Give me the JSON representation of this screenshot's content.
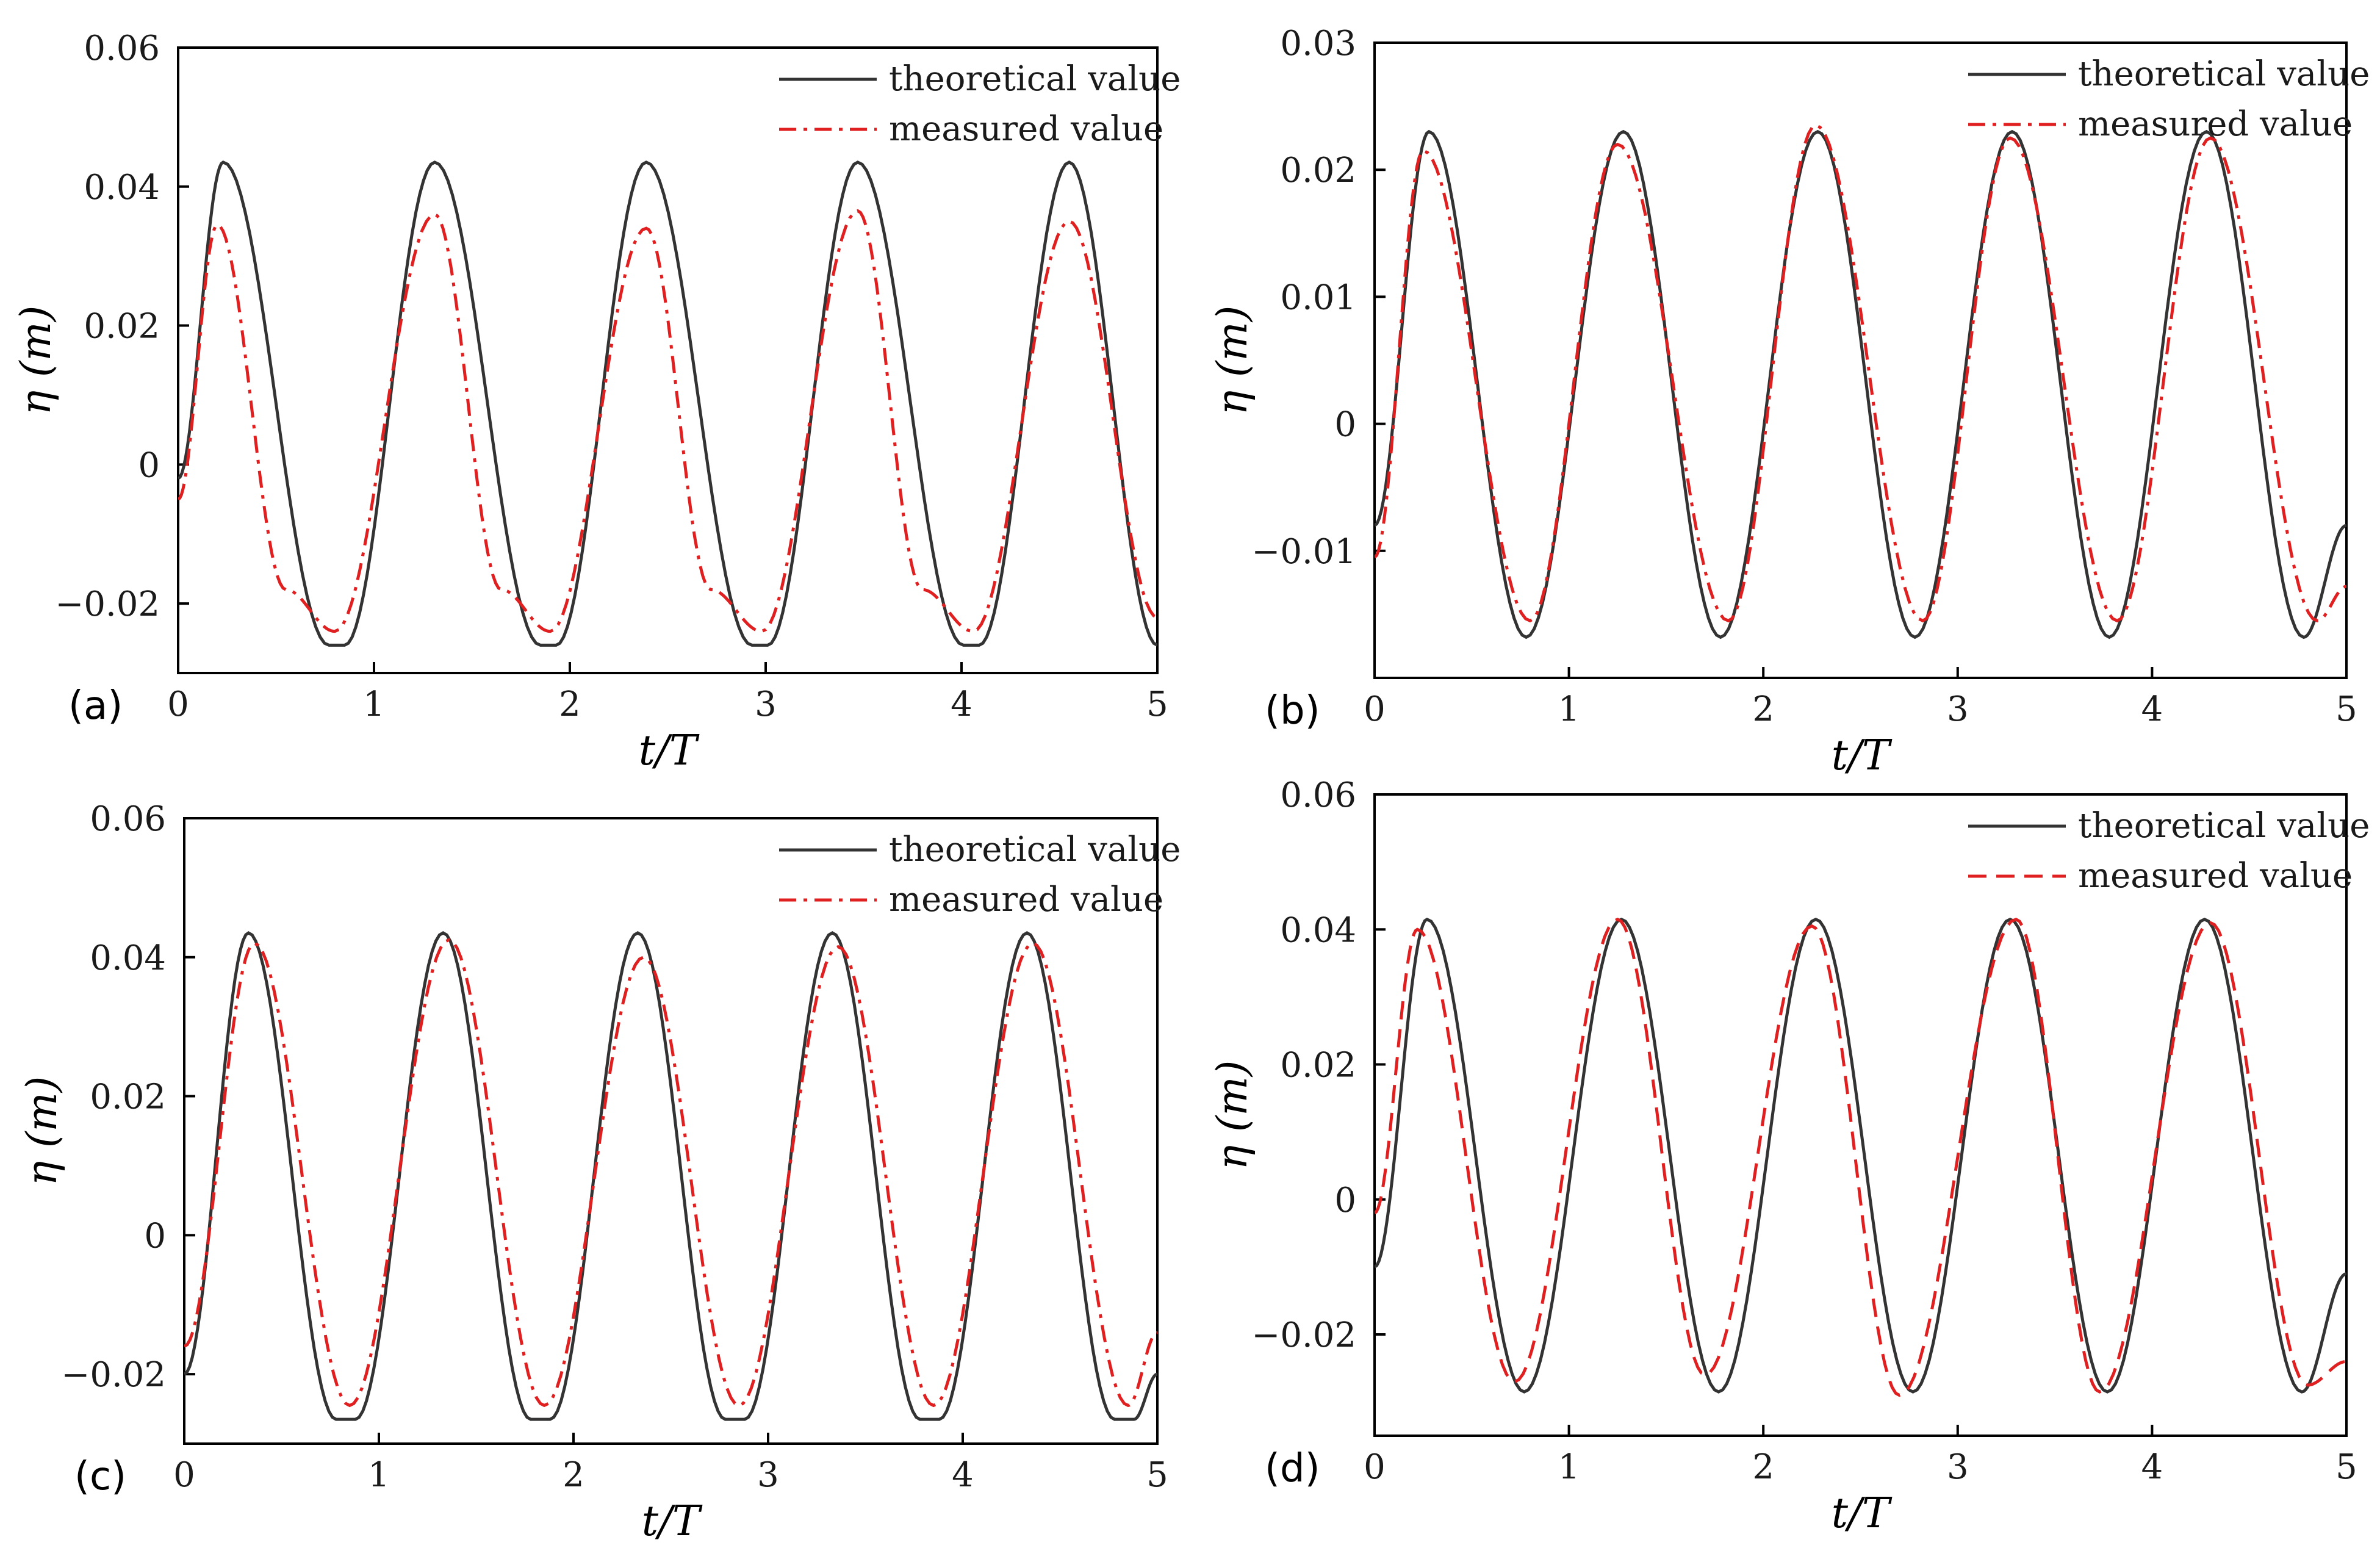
{
  "chart_data": [
    {
      "panel": "(a)",
      "type": "line",
      "xlabel": "t/T",
      "ylabel": "η (m)",
      "xlim": [
        0,
        5
      ],
      "ylim": [
        -0.03,
        0.06
      ],
      "x_ticks": [
        0,
        1,
        2,
        3,
        4,
        5
      ],
      "x_tick_labels": [
        "0",
        "1",
        "2",
        "3",
        "4",
        "5"
      ],
      "y_ticks": [
        -0.02,
        0,
        0.02,
        0.04,
        0.06
      ],
      "y_tick_labels": [
        "−0.02",
        "0",
        "0.02",
        "0.04",
        "0.06"
      ],
      "legend": "top-right",
      "grid": false,
      "series": [
        {
          "name": "theoretical value",
          "color": "#333333",
          "style": "solid",
          "x": [
            0,
            0.23,
            0.77,
            0.85,
            1.31,
            1.85,
            1.93,
            2.39,
            2.93,
            3.01,
            3.47,
            4.01,
            4.09,
            4.55,
            5.0
          ],
          "values": [
            -0.002,
            0.0435,
            -0.026,
            -0.026,
            0.0435,
            -0.026,
            -0.026,
            0.0435,
            -0.026,
            -0.026,
            0.0435,
            -0.026,
            -0.026,
            0.0435,
            -0.026
          ]
        },
        {
          "name": "measured value",
          "color": "#e02020",
          "style": "dash-dot",
          "x": [
            0,
            0.2,
            0.55,
            0.8,
            1.31,
            1.65,
            1.9,
            2.39,
            2.72,
            2.98,
            3.47,
            3.8,
            4.06,
            4.55,
            5.0
          ],
          "values": [
            -0.005,
            0.0345,
            -0.018,
            -0.024,
            0.036,
            -0.018,
            -0.024,
            0.034,
            -0.018,
            -0.024,
            0.0365,
            -0.018,
            -0.024,
            0.035,
            -0.022
          ]
        }
      ]
    },
    {
      "panel": "(b)",
      "type": "line",
      "xlabel": "t/T",
      "ylabel": "η (m)",
      "xlim": [
        0,
        5
      ],
      "ylim": [
        -0.02,
        0.03
      ],
      "x_ticks": [
        0,
        1,
        2,
        3,
        4,
        5
      ],
      "x_tick_labels": [
        "0",
        "1",
        "2",
        "3",
        "4",
        "5"
      ],
      "y_ticks": [
        -0.01,
        0,
        0.01,
        0.02,
        0.03
      ],
      "y_tick_labels": [
        "−0.01",
        "0",
        "0.01",
        "0.02",
        "0.03"
      ],
      "legend": "top-right",
      "grid": false,
      "series": [
        {
          "name": "theoretical value",
          "color": "#333333",
          "style": "solid",
          "x": [
            0,
            0.28,
            0.78,
            1.28,
            1.78,
            2.28,
            2.78,
            3.28,
            3.78,
            4.28,
            4.78,
            5.0
          ],
          "values": [
            -0.008,
            0.023,
            -0.0168,
            0.023,
            -0.0168,
            0.023,
            -0.0168,
            0.023,
            -0.0168,
            0.023,
            -0.0168,
            -0.008
          ]
        },
        {
          "name": "measured value",
          "color": "#e02020",
          "style": "dash-dot",
          "x": [
            0,
            0.25,
            0.8,
            1.25,
            1.82,
            2.27,
            2.82,
            3.27,
            3.82,
            4.3,
            4.85,
            5.0
          ],
          "values": [
            -0.0105,
            0.0215,
            -0.0155,
            0.022,
            -0.0155,
            0.0235,
            -0.0155,
            0.0225,
            -0.0155,
            0.0225,
            -0.0155,
            -0.0128
          ]
        }
      ]
    },
    {
      "panel": "(c)",
      "type": "line",
      "xlabel": "t/T",
      "ylabel": "η (m)",
      "xlim": [
        0,
        5
      ],
      "ylim": [
        -0.03,
        0.06
      ],
      "x_ticks": [
        0,
        1,
        2,
        3,
        4,
        5
      ],
      "x_tick_labels": [
        "0",
        "1",
        "2",
        "3",
        "4",
        "5"
      ],
      "y_ticks": [
        -0.02,
        0,
        0.02,
        0.04,
        0.06
      ],
      "y_tick_labels": [
        "−0.02",
        "0",
        "0.02",
        "0.04",
        "0.06"
      ],
      "legend": "top-right",
      "grid": false,
      "series": [
        {
          "name": "theoretical value",
          "color": "#333333",
          "style": "solid",
          "x": [
            0,
            0.33,
            0.78,
            0.88,
            1.33,
            1.78,
            1.88,
            2.33,
            2.78,
            2.88,
            3.33,
            3.78,
            3.88,
            4.33,
            4.78,
            4.88,
            5.0
          ],
          "values": [
            -0.02,
            0.0435,
            -0.0265,
            -0.0265,
            0.0435,
            -0.0265,
            -0.0265,
            0.0435,
            -0.0265,
            -0.0265,
            0.0435,
            -0.0265,
            -0.0265,
            0.0435,
            -0.0265,
            -0.0265,
            -0.02
          ]
        },
        {
          "name": "measured value",
          "color": "#e02020",
          "style": "dash-dot",
          "x": [
            0,
            0.36,
            0.85,
            1.36,
            1.85,
            2.36,
            2.85,
            3.36,
            3.85,
            4.36,
            4.85,
            5.0
          ],
          "values": [
            -0.016,
            0.042,
            -0.0245,
            0.0425,
            -0.0245,
            0.04,
            -0.0245,
            0.0415,
            -0.0245,
            0.042,
            -0.0245,
            -0.014
          ]
        }
      ]
    },
    {
      "panel": "(d)",
      "type": "line",
      "xlabel": "t/T",
      "ylabel": "η (m)",
      "xlim": [
        0,
        5
      ],
      "ylim": [
        -0.035,
        0.06
      ],
      "x_ticks": [
        0,
        1,
        2,
        3,
        4,
        5
      ],
      "x_tick_labels": [
        "0",
        "1",
        "2",
        "3",
        "4",
        "5"
      ],
      "y_ticks": [
        -0.02,
        0,
        0.02,
        0.04,
        0.06
      ],
      "y_tick_labels": [
        "−0.02",
        "0",
        "0.02",
        "0.04",
        "0.06"
      ],
      "legend": "top-right",
      "grid": false,
      "series": [
        {
          "name": "theoretical value",
          "color": "#333333",
          "style": "solid",
          "x": [
            0,
            0.27,
            0.77,
            1.27,
            1.77,
            2.27,
            2.77,
            3.27,
            3.77,
            4.27,
            4.77,
            5.0
          ],
          "values": [
            -0.01,
            0.0415,
            -0.0285,
            0.0415,
            -0.0285,
            0.0415,
            -0.0285,
            0.0415,
            -0.0285,
            0.0415,
            -0.0285,
            -0.011
          ]
        },
        {
          "name": "measured value",
          "color": "#e02020",
          "style": "dashed",
          "x": [
            0,
            0.22,
            0.72,
            1.25,
            1.7,
            2.25,
            2.7,
            3.3,
            3.73,
            4.3,
            4.8,
            5.0
          ],
          "values": [
            -0.002,
            0.04,
            -0.027,
            0.0415,
            -0.026,
            0.0405,
            -0.029,
            0.0415,
            -0.0285,
            0.041,
            -0.0275,
            -0.024
          ]
        }
      ]
    }
  ]
}
